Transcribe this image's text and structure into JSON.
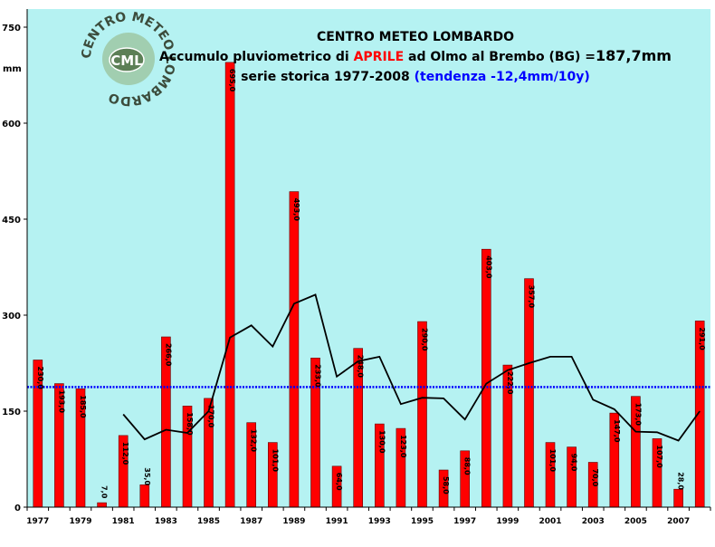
{
  "header": {
    "title": "CENTRO METEO LOMBARDO",
    "line2_prefix": "Accumulo pluviometrico di ",
    "line2_month": "APRILE",
    "line2_middle": " ad Olmo al Brembo (BG) =",
    "line2_total": "187,7mm",
    "line3_prefix": "serie storica 1977-2008 ",
    "line3_trend": "(tendenza -12,4mm/10y)"
  },
  "logo": {
    "ring_text": "CENTRO METEO LOMBARDO",
    "badge": "CML"
  },
  "colors": {
    "plot_bg": "#b5f2f2",
    "bar_fill": "#ff0000",
    "bar_stroke": "#600000",
    "mean_line": "#0000ff",
    "moving_avg": "#000000",
    "title_red": "#ff0000",
    "trend_blue": "#0000ff"
  },
  "chart_data": {
    "type": "bar",
    "ylabel": "mm",
    "ylim": [
      0,
      750
    ],
    "yticks": [
      "0",
      "150",
      "300",
      "450",
      "600",
      "750"
    ],
    "x_tick_labels": [
      "1977",
      "1979",
      "1981",
      "1983",
      "1985",
      "1987",
      "1989",
      "1991",
      "1993",
      "1995",
      "1997",
      "1999",
      "2001",
      "2003",
      "2005",
      "2007"
    ],
    "categories": [
      "1977",
      "1978",
      "1979",
      "1980",
      "1981",
      "1982",
      "1983",
      "1984",
      "1985",
      "1986",
      "1987",
      "1988",
      "1989",
      "1990",
      "1991",
      "1992",
      "1993",
      "1994",
      "1995",
      "1996",
      "1997",
      "1998",
      "1999",
      "2000",
      "2001",
      "2002",
      "2003",
      "2004",
      "2005",
      "2006",
      "2007",
      "2008"
    ],
    "values": [
      230,
      193,
      185,
      7,
      112,
      35,
      266,
      158,
      170,
      695,
      132,
      101,
      493,
      233,
      64,
      248,
      130,
      123,
      290,
      58,
      88,
      403,
      222,
      357,
      101,
      94,
      70,
      147,
      173,
      107,
      28,
      291
    ],
    "data_labels": [
      "230,0",
      "193,0",
      "185,0",
      "7,0",
      "112,0",
      "35,0",
      "266,0",
      "158,0",
      "170,0",
      "695,0",
      "132,0",
      "101,0",
      "493,0",
      "233,0",
      "64,0",
      "248,0",
      "130,0",
      "123,0",
      "290,0",
      "58,0",
      "88,0",
      "403,0",
      "222,0",
      "357,0",
      "101,0",
      "94,0",
      "70,0",
      "147,0",
      "173,0",
      "107,0",
      "28,0",
      "291,0"
    ],
    "mean_value": 187.7,
    "moving_average": [
      null,
      null,
      null,
      null,
      145,
      106,
      121,
      116,
      150,
      265,
      284,
      251,
      318,
      332,
      204,
      228,
      235,
      161,
      171,
      170,
      137,
      193,
      214,
      225,
      235,
      235,
      168,
      153,
      118,
      117,
      104,
      150
    ],
    "grid": false,
    "legend": "none"
  }
}
